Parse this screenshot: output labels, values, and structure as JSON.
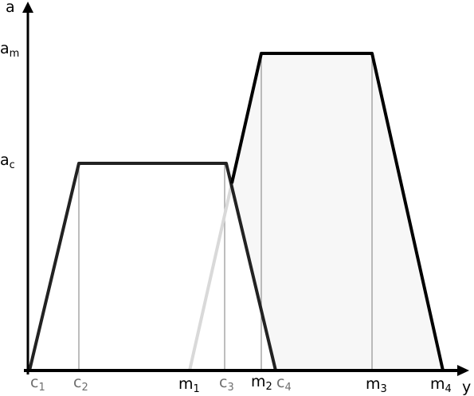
{
  "axes": {
    "x_label": "y",
    "y_label": "a",
    "y_ticks": [
      {
        "base": "a",
        "sub": "m"
      },
      {
        "base": "a",
        "sub": "c"
      }
    ]
  },
  "x_ticks": [
    {
      "base": "c",
      "sub": "1",
      "color": "#6e6e6e"
    },
    {
      "base": "c",
      "sub": "2",
      "color": "#6e6e6e"
    },
    {
      "base": "m",
      "sub": "1",
      "color": "#000000"
    },
    {
      "base": "c",
      "sub": "3",
      "color": "#6e6e6e"
    },
    {
      "base": "m",
      "sub": "2",
      "color": "#000000"
    },
    {
      "base": "c",
      "sub": "4",
      "color": "#6e6e6e"
    },
    {
      "base": "m",
      "sub": "3",
      "color": "#000000"
    },
    {
      "base": "m",
      "sub": "4",
      "color": "#000000"
    }
  ],
  "shapes": {
    "trapezoid_c": {
      "points": [
        "c1",
        "c2",
        "c3",
        "c4"
      ],
      "height": "ac",
      "stroke": "#222222",
      "fill": "#ffffff"
    },
    "trapezoid_m": {
      "points": [
        "m1",
        "m2",
        "m3",
        "m4"
      ],
      "height": "am",
      "stroke": "#000000",
      "fill": "#f7f7f7",
      "hidden_edge_color": "#d9d9d9"
    }
  }
}
